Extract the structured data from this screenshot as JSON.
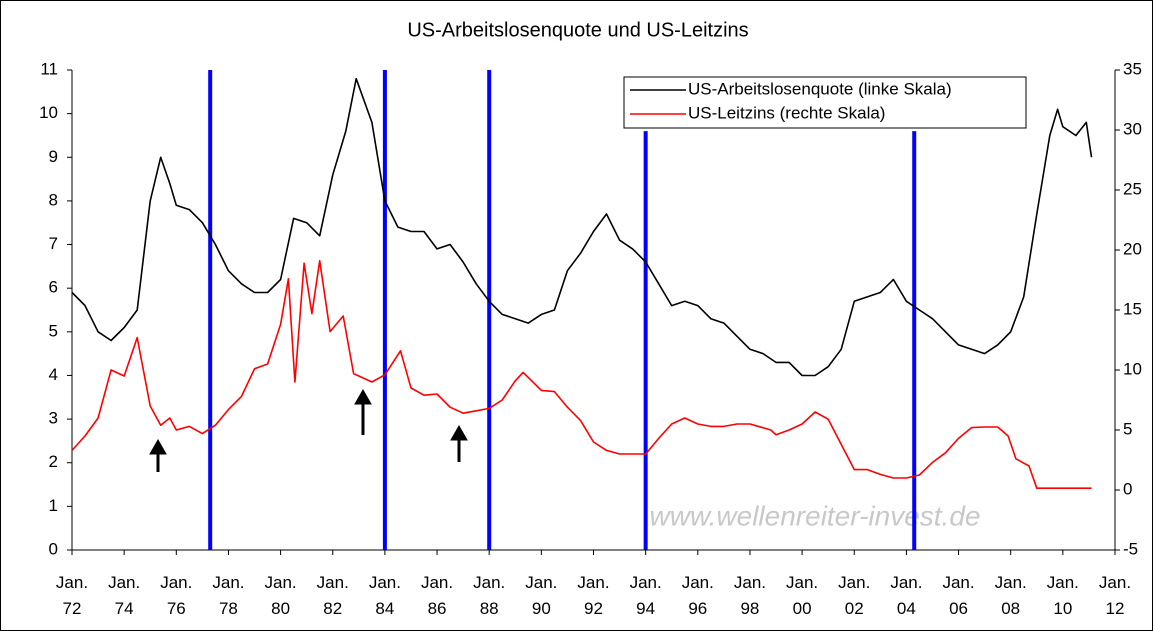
{
  "chart_data": {
    "type": "line",
    "title": "US-Arbeitslosenquote und US-Leitzins",
    "watermark": "www.wellenreiter-invest.de",
    "legend": "top-right",
    "xlim": [
      1972,
      2012
    ],
    "xticks": [
      {
        "value": 1972,
        "label": "Jan. 72"
      },
      {
        "value": 1974,
        "label": "Jan. 74"
      },
      {
        "value": 1976,
        "label": "Jan. 76"
      },
      {
        "value": 1978,
        "label": "Jan. 78"
      },
      {
        "value": 1980,
        "label": "Jan. 80"
      },
      {
        "value": 1982,
        "label": "Jan. 82"
      },
      {
        "value": 1984,
        "label": "Jan. 84"
      },
      {
        "value": 1986,
        "label": "Jan. 86"
      },
      {
        "value": 1988,
        "label": "Jan. 88"
      },
      {
        "value": 1990,
        "label": "Jan. 90"
      },
      {
        "value": 1992,
        "label": "Jan. 92"
      },
      {
        "value": 1994,
        "label": "Jan. 94"
      },
      {
        "value": 1996,
        "label": "Jan. 96"
      },
      {
        "value": 1998,
        "label": "Jan. 98"
      },
      {
        "value": 2000,
        "label": "Jan. 00"
      },
      {
        "value": 2002,
        "label": "Jan. 02"
      },
      {
        "value": 2004,
        "label": "Jan. 04"
      },
      {
        "value": 2006,
        "label": "Jan. 06"
      },
      {
        "value": 2008,
        "label": "Jan. 08"
      },
      {
        "value": 2010,
        "label": "Jan. 10"
      },
      {
        "value": 2012,
        "label": "Jan. 12"
      }
    ],
    "ylim": [
      0,
      11
    ],
    "yticks": [
      0,
      1,
      2,
      3,
      4,
      5,
      6,
      7,
      8,
      9,
      10,
      11
    ],
    "y2lim": [
      -5,
      35
    ],
    "y2ticks": [
      -5,
      0,
      5,
      10,
      15,
      20,
      25,
      30,
      35
    ],
    "vertical_lines": [
      {
        "x": 1977.3,
        "top": 11
      },
      {
        "x": 1984.0,
        "top": 11
      },
      {
        "x": 1988.0,
        "top": 11
      },
      {
        "x": 1994.0,
        "top": 9.6
      },
      {
        "x": 2004.3,
        "top": 9.6
      }
    ],
    "vertical_line_color": "#0000ff",
    "series": [
      {
        "name": "US-Arbeitslosenquote (linke Skala)",
        "color": "#000000",
        "axis": "y",
        "x": [
          1972.0,
          1972.5,
          1973.0,
          1973.5,
          1974.0,
          1974.5,
          1975.0,
          1975.4,
          1975.75,
          1976.0,
          1976.5,
          1977.0,
          1977.5,
          1978.0,
          1978.5,
          1979.0,
          1979.5,
          1980.0,
          1980.5,
          1981.0,
          1981.5,
          1982.0,
          1982.5,
          1982.9,
          1983.5,
          1984.0,
          1984.5,
          1985.0,
          1985.5,
          1986.0,
          1986.5,
          1987.0,
          1987.5,
          1988.0,
          1988.5,
          1989.0,
          1989.5,
          1990.0,
          1990.5,
          1991.0,
          1991.5,
          1992.0,
          1992.5,
          1993.0,
          1993.5,
          1994.0,
          1994.5,
          1995.0,
          1995.5,
          1996.0,
          1996.5,
          1997.0,
          1997.5,
          1998.0,
          1998.5,
          1999.0,
          1999.5,
          2000.0,
          2000.5,
          2001.0,
          2001.5,
          2002.0,
          2002.5,
          2003.0,
          2003.5,
          2004.0,
          2004.5,
          2005.0,
          2005.5,
          2006.0,
          2006.5,
          2007.0,
          2007.5,
          2008.0,
          2008.5,
          2009.0,
          2009.5,
          2009.8,
          2010.0,
          2010.5,
          2010.9,
          2011.1
        ],
        "values": [
          5.9,
          5.6,
          5.0,
          4.8,
          5.1,
          5.5,
          8.0,
          9.0,
          8.4,
          7.9,
          7.8,
          7.5,
          7.0,
          6.4,
          6.1,
          5.9,
          5.9,
          6.2,
          7.6,
          7.5,
          7.2,
          8.6,
          9.6,
          10.8,
          9.8,
          8.0,
          7.4,
          7.3,
          7.3,
          6.9,
          7.0,
          6.6,
          6.1,
          5.7,
          5.4,
          5.3,
          5.2,
          5.4,
          5.5,
          6.4,
          6.8,
          7.3,
          7.7,
          7.1,
          6.9,
          6.6,
          6.1,
          5.6,
          5.7,
          5.6,
          5.3,
          5.2,
          4.9,
          4.6,
          4.5,
          4.3,
          4.3,
          4.0,
          4.0,
          4.2,
          4.6,
          5.7,
          5.8,
          5.9,
          6.2,
          5.7,
          5.5,
          5.3,
          5.0,
          4.7,
          4.6,
          4.5,
          4.7,
          5.0,
          5.8,
          7.7,
          9.5,
          10.1,
          9.7,
          9.5,
          9.8,
          9.0
        ]
      },
      {
        "name": "US-Leitzins (rechte Skala)",
        "color": "#ff0000",
        "axis": "y2",
        "x": [
          1972.0,
          1972.5,
          1973.0,
          1973.5,
          1974.0,
          1974.5,
          1975.0,
          1975.4,
          1975.75,
          1976.0,
          1976.5,
          1977.0,
          1977.5,
          1978.0,
          1978.5,
          1979.0,
          1979.5,
          1980.0,
          1980.3,
          1980.55,
          1980.9,
          1981.2,
          1981.5,
          1981.9,
          1982.4,
          1982.8,
          1983.5,
          1984.0,
          1984.6,
          1985.0,
          1985.5,
          1986.0,
          1986.5,
          1987.0,
          1987.5,
          1988.0,
          1988.5,
          1989.0,
          1989.3,
          1990.0,
          1990.5,
          1991.0,
          1991.5,
          1992.0,
          1992.5,
          1993.0,
          1993.5,
          1994.0,
          1994.5,
          1995.0,
          1995.5,
          1996.0,
          1996.5,
          1997.0,
          1997.5,
          1998.0,
          1998.8,
          1999.0,
          1999.5,
          2000.0,
          2000.5,
          2001.0,
          2001.5,
          2002.0,
          2002.5,
          2003.0,
          2003.5,
          2004.0,
          2004.5,
          2005.0,
          2005.5,
          2006.0,
          2006.5,
          2007.0,
          2007.5,
          2007.9,
          2008.2,
          2008.7,
          2009.0,
          2010.0,
          2011.1
        ],
        "values": [
          3.3,
          4.5,
          6.0,
          10.0,
          9.5,
          12.7,
          7.0,
          5.4,
          6.0,
          5.0,
          5.3,
          4.7,
          5.4,
          6.7,
          7.8,
          10.1,
          10.5,
          13.8,
          17.6,
          9.0,
          18.9,
          14.7,
          19.1,
          13.2,
          14.5,
          9.7,
          9.0,
          9.6,
          11.6,
          8.5,
          7.9,
          8.0,
          6.9,
          6.4,
          6.6,
          6.8,
          7.5,
          9.1,
          9.8,
          8.3,
          8.2,
          6.9,
          5.8,
          4.0,
          3.3,
          3.0,
          3.0,
          3.0,
          4.3,
          5.5,
          6.0,
          5.5,
          5.3,
          5.3,
          5.5,
          5.5,
          5.0,
          4.6,
          5.0,
          5.5,
          6.5,
          5.9,
          3.8,
          1.7,
          1.7,
          1.3,
          1.0,
          1.0,
          1.25,
          2.3,
          3.1,
          4.3,
          5.2,
          5.25,
          5.25,
          4.5,
          2.6,
          2.0,
          0.15,
          0.15,
          0.15
        ]
      }
    ]
  }
}
